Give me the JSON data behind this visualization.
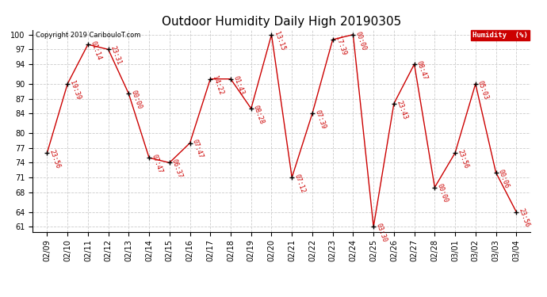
{
  "title": "Outdoor Humidity Daily High 20190305",
  "copyright": "Copyright 2019 CaribouIoT.com",
  "legend_label": "Humidity  (%)",
  "dates": [
    "02/09",
    "02/10",
    "02/11",
    "02/12",
    "02/13",
    "02/14",
    "02/15",
    "02/16",
    "02/17",
    "02/18",
    "02/19",
    "02/20",
    "02/21",
    "02/22",
    "02/23",
    "02/24",
    "02/25",
    "02/26",
    "02/27",
    "02/28",
    "03/01",
    "03/02",
    "03/03",
    "03/04"
  ],
  "values": [
    76,
    90,
    98,
    97,
    88,
    75,
    74,
    78,
    91,
    91,
    85,
    100,
    71,
    84,
    99,
    100,
    61,
    86,
    94,
    69,
    76,
    90,
    72,
    64
  ],
  "time_labels": [
    "23:56",
    "19:39",
    "01:14",
    "23:31",
    "00:00",
    "07:47",
    "06:37",
    "07:47",
    "14:22",
    "01:43",
    "08:28",
    "13:15",
    "07:12",
    "07:39",
    "17:39",
    "00:00",
    "03:30",
    "23:43",
    "08:47",
    "00:00",
    "23:56",
    "05:03",
    "00:06",
    "23:56"
  ],
  "ylim_min": 60,
  "ylim_max": 101,
  "yticks": [
    61,
    64,
    68,
    71,
    74,
    77,
    80,
    84,
    87,
    90,
    94,
    97,
    100
  ],
  "line_color": "#cc0000",
  "marker_color": "#000000",
  "label_color": "#cc0000",
  "bg_color": "#ffffff",
  "grid_color": "#cccccc",
  "title_fontsize": 11,
  "axis_fontsize": 7,
  "label_fontsize": 6,
  "copyright_fontsize": 6,
  "legend_bg": "#cc0000",
  "legend_fg": "#ffffff"
}
